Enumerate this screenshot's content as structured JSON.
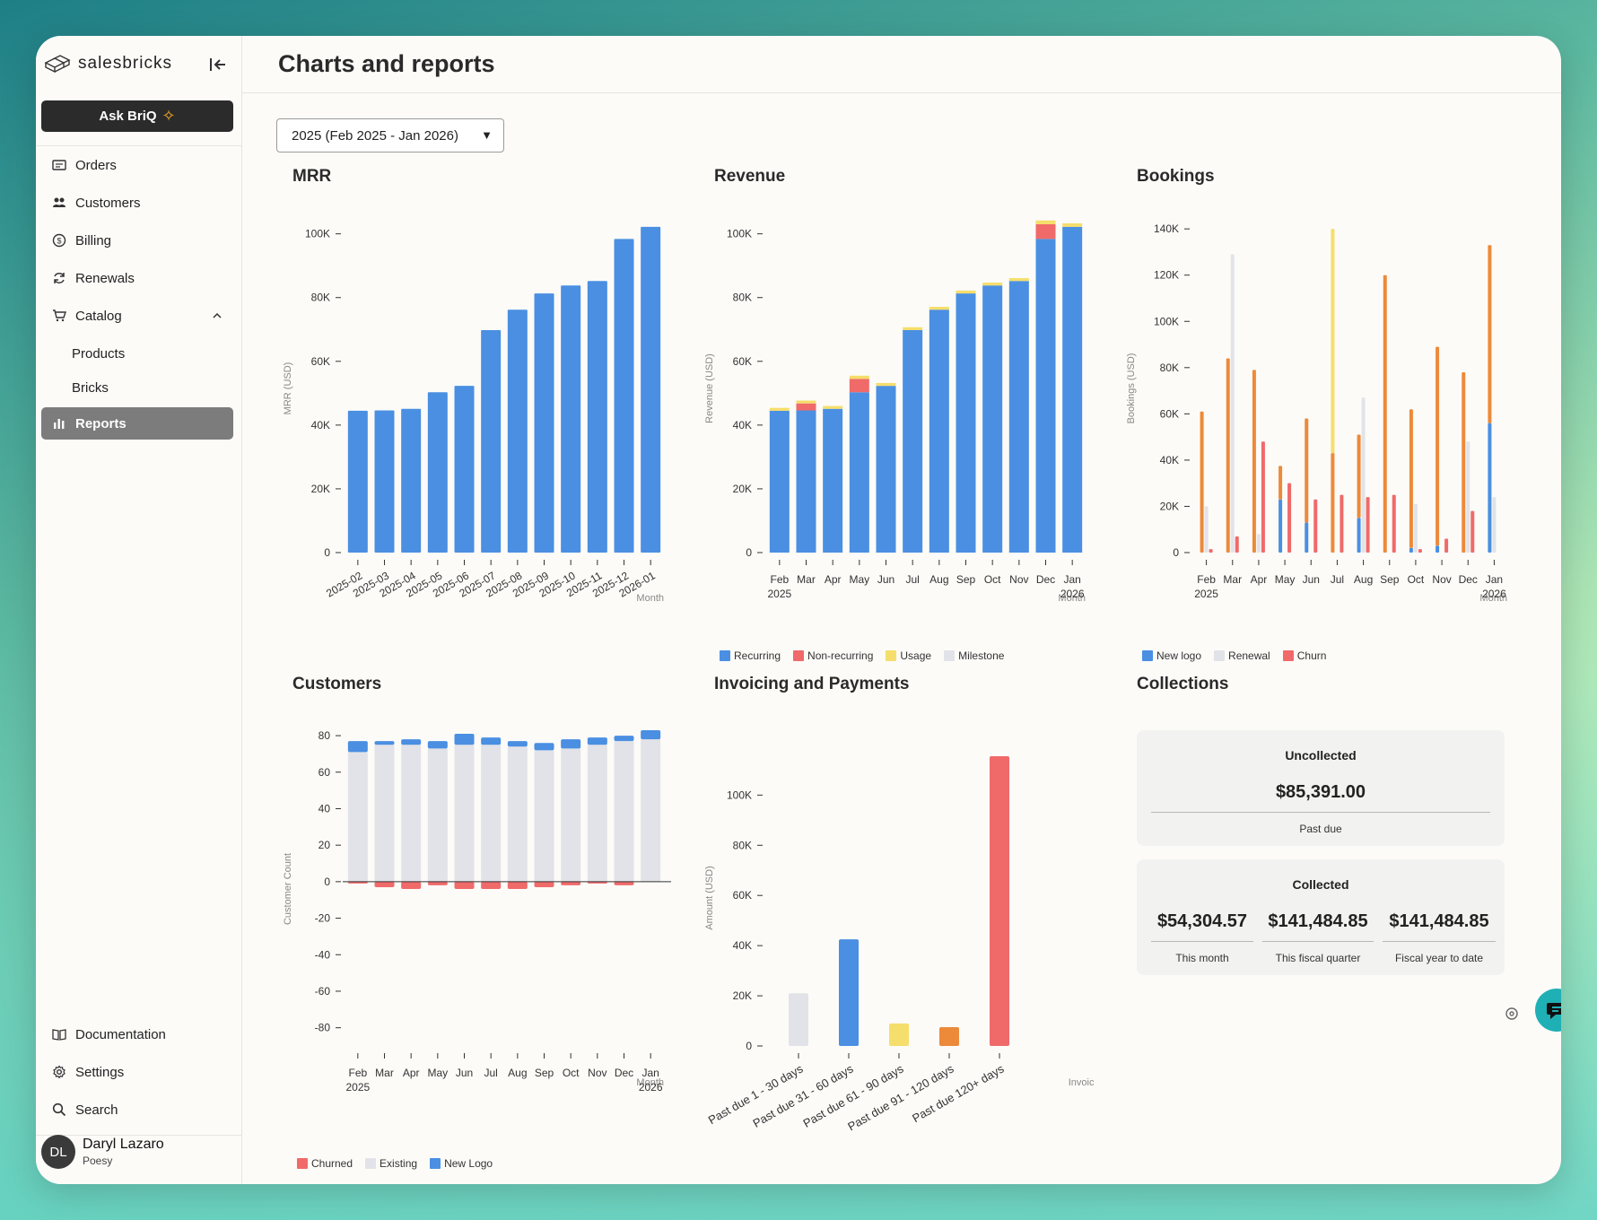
{
  "app": {
    "brand": "salesbricks",
    "ask_label": "Ask BriQ"
  },
  "nav": {
    "items": [
      {
        "label": "Orders"
      },
      {
        "label": "Customers"
      },
      {
        "label": "Billing"
      },
      {
        "label": "Renewals"
      },
      {
        "label": "Catalog"
      },
      {
        "label": "Products"
      },
      {
        "label": "Bricks"
      },
      {
        "label": "Reports"
      }
    ],
    "bottom": [
      {
        "label": "Documentation"
      },
      {
        "label": "Settings"
      },
      {
        "label": "Search"
      }
    ]
  },
  "user": {
    "initials": "DL",
    "name": "Daryl Lazaro",
    "org": "Poesy"
  },
  "page": {
    "title": "Charts and reports",
    "period": "2025 (Feb 2025 - Jan 2026)"
  },
  "charts": {
    "mrr": {
      "title": "MRR"
    },
    "revenue": {
      "title": "Revenue"
    },
    "bookings": {
      "title": "Bookings"
    },
    "customers": {
      "title": "Customers"
    },
    "invoicing": {
      "title": "Invoicing and Payments"
    },
    "collections": {
      "title": "Collections"
    }
  },
  "legends": {
    "revenue": [
      {
        "label": "Recurring",
        "color": "#4a8fe2"
      },
      {
        "label": "Non-recurring",
        "color": "#f06a6a"
      },
      {
        "label": "Usage",
        "color": "#f5de6b"
      },
      {
        "label": "Milestone",
        "color": "#e2e3e8"
      }
    ],
    "bookings": [
      {
        "label": "New logo",
        "color": "#4a8fe2"
      },
      {
        "label": "Renewal",
        "color": "#e2e3e8"
      },
      {
        "label": "Churn",
        "color": "#f06a6a"
      }
    ],
    "customers": [
      {
        "label": "Churned",
        "color": "#f06a6a"
      },
      {
        "label": "Existing",
        "color": "#e2e3e8"
      },
      {
        "label": "New Logo",
        "color": "#4a8fe2"
      }
    ]
  },
  "collections": {
    "uncollected": {
      "title": "Uncollected",
      "amount": "$85,391.00",
      "label": "Past due"
    },
    "collected": {
      "title": "Collected",
      "items": [
        {
          "amount": "$54,304.57",
          "label": "This month"
        },
        {
          "amount": "$141,484.85",
          "label": "This fiscal quarter"
        },
        {
          "amount": "$141,484.85",
          "label": "Fiscal year to date"
        }
      ]
    }
  },
  "chart_data": [
    {
      "id": "mrr",
      "type": "bar",
      "title": "MRR",
      "ylabel": "MRR (USD)",
      "xlabel": "Month",
      "ylim": [
        0,
        103000
      ],
      "yticks": [
        0,
        20000,
        40000,
        60000,
        80000,
        100000
      ],
      "ytick_labels": [
        "0",
        "20K",
        "40K",
        "60K",
        "80K",
        "100K"
      ],
      "categories": [
        "2025-02",
        "2025-03",
        "2025-04",
        "2025-05",
        "2025-06",
        "2025-07",
        "2025-08",
        "2025-09",
        "2025-10",
        "2025-11",
        "2025-12",
        "2026-01"
      ],
      "values": [
        44500,
        44600,
        45100,
        50300,
        52300,
        69800,
        76200,
        81300,
        83800,
        85200,
        98400,
        102200
      ],
      "color": "#4a8fe2"
    },
    {
      "id": "revenue",
      "type": "bar",
      "stacked": true,
      "title": "Revenue",
      "ylabel": "Revenue (USD)",
      "xlabel": "Month",
      "ylim": [
        0,
        103000
      ],
      "yticks": [
        0,
        20000,
        40000,
        60000,
        80000,
        100000
      ],
      "ytick_labels": [
        "0",
        "20K",
        "40K",
        "60K",
        "80K",
        "100K"
      ],
      "categories": [
        "Feb",
        "Mar",
        "Apr",
        "May",
        "Jun",
        "Jul",
        "Aug",
        "Sep",
        "Oct",
        "Nov",
        "Dec",
        "Jan"
      ],
      "category_sub": [
        "2025",
        "",
        "",
        "",
        "",
        "",
        "",
        "",
        "",
        "",
        "",
        "2026"
      ],
      "series": [
        {
          "name": "Recurring",
          "color": "#4a8fe2",
          "values": [
            44500,
            44600,
            45100,
            50300,
            52300,
            69800,
            76200,
            81300,
            83800,
            85200,
            98400,
            102200
          ]
        },
        {
          "name": "Non-recurring",
          "color": "#f06a6a",
          "values": [
            0,
            2200,
            0,
            4200,
            0,
            0,
            0,
            0,
            0,
            0,
            4600,
            0
          ]
        },
        {
          "name": "Usage",
          "color": "#f5de6b",
          "values": [
            900,
            900,
            900,
            1000,
            900,
            900,
            900,
            900,
            900,
            900,
            1200,
            1100
          ]
        },
        {
          "name": "Milestone",
          "color": "#e2e3e8",
          "values": [
            0,
            0,
            0,
            0,
            0,
            0,
            0,
            0,
            0,
            0,
            0,
            0
          ]
        }
      ]
    },
    {
      "id": "bookings",
      "type": "bar",
      "title": "Bookings",
      "ylabel": "Bookings (USD)",
      "xlabel": "Month",
      "ylim": [
        0,
        142000
      ],
      "yticks": [
        0,
        20000,
        40000,
        60000,
        80000,
        100000,
        120000,
        140000
      ],
      "ytick_labels": [
        "0",
        "20K",
        "40K",
        "60K",
        "80K",
        "100K",
        "120K",
        "140K"
      ],
      "categories": [
        "Feb",
        "Mar",
        "Apr",
        "May",
        "Jun",
        "Jul",
        "Aug",
        "Sep",
        "Oct",
        "Nov",
        "Dec",
        "Jan"
      ],
      "category_sub": [
        "2025",
        "",
        "",
        "",
        "",
        "",
        "",
        "",
        "",
        "",
        "",
        "2026"
      ],
      "bars": [
        [
          {
            "c": "#ec8a3a",
            "v": [
              0,
              61000
            ]
          },
          {
            "c": "#e2e3e8",
            "v": [
              0,
              20000
            ]
          },
          {
            "c": "#f06a6a",
            "v": [
              0,
              1500
            ]
          }
        ],
        [
          {
            "c": "#ec8a3a",
            "v": [
              0,
              84000
            ]
          },
          {
            "c": "#e2e3e8",
            "v": [
              0,
              129000
            ]
          },
          {
            "c": "#f06a6a",
            "v": [
              0,
              7000
            ]
          }
        ],
        [
          {
            "c": "#ec8a3a",
            "v": [
              0,
              79000
            ]
          },
          {
            "c": "#e2e3e8",
            "v": [
              0,
              8000
            ]
          },
          {
            "c": "#f06a6a",
            "v": [
              0,
              48000
            ]
          }
        ],
        [
          {
            "c": "#4a8fe2",
            "v": [
              0,
              23000
            ]
          },
          {
            "c": "#ec8a3a",
            "v": [
              23000,
              37500
            ]
          },
          {
            "c": "#f06a6a",
            "v": [
              0,
              30000
            ]
          }
        ],
        [
          {
            "c": "#4a8fe2",
            "v": [
              0,
              13000
            ]
          },
          {
            "c": "#ec8a3a",
            "v": [
              13000,
              58000
            ]
          },
          {
            "c": "#f06a6a",
            "v": [
              0,
              23000
            ]
          }
        ],
        [
          {
            "c": "#ec8a3a",
            "v": [
              0,
              43000
            ]
          },
          {
            "c": "#f5de6b",
            "v": [
              43000,
              140000
            ]
          },
          {
            "c": "#f06a6a",
            "v": [
              0,
              25000
            ]
          }
        ],
        [
          {
            "c": "#4a8fe2",
            "v": [
              0,
              15000
            ]
          },
          {
            "c": "#ec8a3a",
            "v": [
              15000,
              51000
            ]
          },
          {
            "c": "#e2e3e8",
            "v": [
              0,
              67000
            ]
          },
          {
            "c": "#f06a6a",
            "v": [
              0,
              24000
            ]
          }
        ],
        [
          {
            "c": "#ec8a3a",
            "v": [
              0,
              120000
            ]
          },
          {
            "c": "#f06a6a",
            "v": [
              0,
              25000
            ]
          }
        ],
        [
          {
            "c": "#4a8fe2",
            "v": [
              0,
              2000
            ]
          },
          {
            "c": "#ec8a3a",
            "v": [
              2000,
              62000
            ]
          },
          {
            "c": "#e2e3e8",
            "v": [
              0,
              21000
            ]
          },
          {
            "c": "#f06a6a",
            "v": [
              0,
              1500
            ]
          }
        ],
        [
          {
            "c": "#4a8fe2",
            "v": [
              0,
              3000
            ]
          },
          {
            "c": "#ec8a3a",
            "v": [
              3000,
              89000
            ]
          },
          {
            "c": "#f06a6a",
            "v": [
              0,
              6000
            ]
          }
        ],
        [
          {
            "c": "#ec8a3a",
            "v": [
              0,
              78000
            ]
          },
          {
            "c": "#e2e3e8",
            "v": [
              0,
              48000
            ]
          },
          {
            "c": "#f06a6a",
            "v": [
              0,
              18000
            ]
          }
        ],
        [
          {
            "c": "#4a8fe2",
            "v": [
              0,
              56000
            ]
          },
          {
            "c": "#ec8a3a",
            "v": [
              56000,
              133000
            ]
          },
          {
            "c": "#e2e3e8",
            "v": [
              0,
              24000
            ]
          }
        ]
      ]
    },
    {
      "id": "customers",
      "type": "bar",
      "stacked": true,
      "title": "Customers",
      "ylabel": "Customer Count",
      "xlabel": "Month",
      "ylim": [
        -90,
        82
      ],
      "yticks": [
        -80,
        -60,
        -40,
        -20,
        0,
        20,
        40,
        60,
        80
      ],
      "ytick_labels": [
        "-80",
        "-60",
        "-40",
        "-20",
        "0",
        "20",
        "40",
        "60",
        "80"
      ],
      "categories": [
        "Feb",
        "Mar",
        "Apr",
        "May",
        "Jun",
        "Jul",
        "Aug",
        "Sep",
        "Oct",
        "Nov",
        "Dec",
        "Jan"
      ],
      "category_sub": [
        "2025",
        "",
        "",
        "",
        "",
        "",
        "",
        "",
        "",
        "",
        "",
        "2026"
      ],
      "series": [
        {
          "name": "Existing",
          "color": "#e2e3e8",
          "values": [
            71,
            75,
            75,
            73,
            75,
            75,
            74,
            72,
            73,
            75,
            77,
            78
          ]
        },
        {
          "name": "New Logo",
          "color": "#4a8fe2",
          "values": [
            6,
            2,
            3,
            4,
            6,
            4,
            3,
            4,
            5,
            4,
            3,
            5
          ]
        },
        {
          "name": "Churned",
          "color": "#f06a6a",
          "values": [
            -1,
            -3,
            -4,
            -2,
            -4,
            -4,
            -4,
            -3,
            -2,
            -1,
            -2,
            0
          ]
        }
      ]
    },
    {
      "id": "invoicing",
      "type": "bar",
      "title": "Invoicing and Payments",
      "ylabel": "Amount (USD)",
      "xlabel": "Invoice status",
      "ylim": [
        0,
        118000
      ],
      "yticks": [
        0,
        20000,
        40000,
        60000,
        80000,
        100000
      ],
      "ytick_labels": [
        "0",
        "20K",
        "40K",
        "60K",
        "80K",
        "100K"
      ],
      "categories": [
        "Past due 1 - 30 days",
        "Past due 31 - 60 days",
        "Past due 61 - 90 days",
        "Past due 91 - 120 days",
        "Past due 120+ days"
      ],
      "values": [
        21000,
        42500,
        9000,
        7500,
        115500
      ],
      "colors": [
        "#e2e3e8",
        "#4a8fe2",
        "#f5de6b",
        "#ec8a3a",
        "#f06a6a"
      ]
    }
  ]
}
